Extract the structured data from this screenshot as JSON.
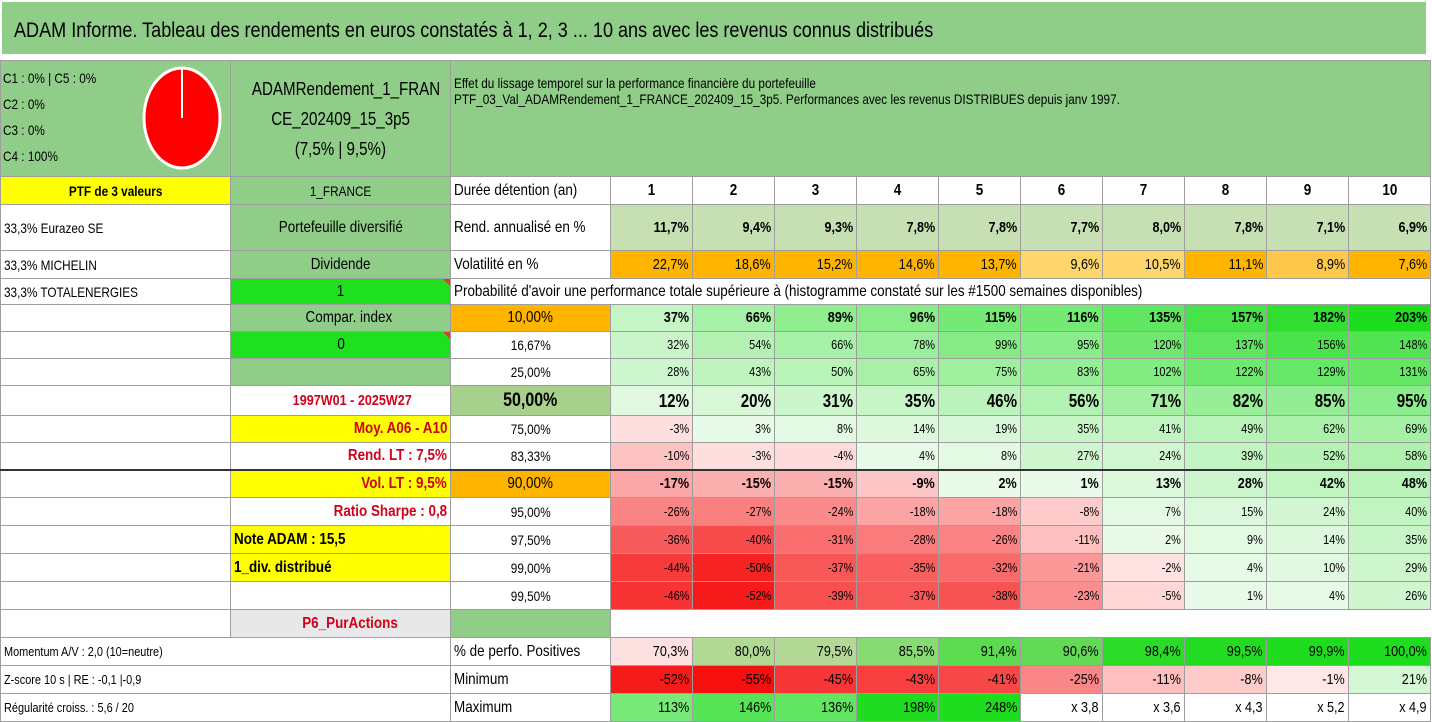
{
  "title": "ADAM Informe. Tableau des rendements en euros constatés à 1, 2, 3 ... 10 ans avec les revenus connus distribués",
  "pie": {
    "legend": [
      "C1 : 0% | C5 : 0%",
      "C2 : 0%",
      "C3 : 0%",
      "C4 : 100%"
    ],
    "values": [
      0,
      0,
      0,
      100,
      0
    ],
    "color": "#ff0000"
  },
  "portfolio_name": [
    "ADAMRendement_1_FRAN",
    "CE_202409_15_3p5",
    "(7,5% | 9,5%)"
  ],
  "description": [
    "Effet du lissage temporel sur la performance financière du portefeuille",
    "PTF_03_Val_ADAMRendement_1_FRANCE_202409_15_3p5. Performances avec les revenus DISTRIBUES depuis janv 1997."
  ],
  "left": {
    "ptf_label": "PTF de 3 valeurs",
    "holdings": [
      "33,3% Eurazeo SE",
      "33,3% MICHELIN",
      "33,3% TOTALENERGIES"
    ]
  },
  "middle": {
    "country": "1_FRANCE",
    "type": "Portefeuille diversifié",
    "dividende_label": "Dividende",
    "dividende_value": "1",
    "compar_index": "Compar. index",
    "compar_value": "0",
    "period": "1997W01 - 2025W27",
    "moy": "Moy. A06 - A10",
    "rend_lt": "Rend. LT : 7,5%",
    "vol_lt": "Vol. LT : 9,5%",
    "sharpe": "Ratio Sharpe : 0,8",
    "note": "Note ADAM : 15,5",
    "div": "1_div. distribué",
    "p6": "P6_PurActions",
    "momentum": "Momentum A/V : 2,0 (10=neutre)",
    "zscore": "Z-score 10 s | RE : -0,1 |-0,9",
    "regularite": "Régularité croiss. : 5,6 / 20"
  },
  "table": {
    "duree_label": "Durée détention (an)",
    "years": [
      "1",
      "2",
      "3",
      "4",
      "5",
      "6",
      "7",
      "8",
      "9",
      "10"
    ],
    "rend_label": "Rend. annualisé en %",
    "rend": [
      "11,7%",
      "9,4%",
      "9,3%",
      "7,8%",
      "7,8%",
      "7,7%",
      "8,0%",
      "7,8%",
      "7,1%",
      "6,9%"
    ],
    "vol_label": "Volatilité en %",
    "vol": [
      "22,7%",
      "18,6%",
      "15,2%",
      "14,6%",
      "13,7%",
      "9,6%",
      "10,5%",
      "11,1%",
      "8,9%",
      "7,6%"
    ],
    "prob_label": "Probabilité d'avoir une performance totale supérieure à (histogramme constaté sur les #1500 semaines disponibles)",
    "quantiles": [
      {
        "p": "10,00%",
        "v": [
          "37%",
          "66%",
          "89%",
          "96%",
          "115%",
          "116%",
          "135%",
          "157%",
          "182%",
          "203%"
        ]
      },
      {
        "p": "16,67%",
        "v": [
          "32%",
          "54%",
          "66%",
          "78%",
          "99%",
          "95%",
          "120%",
          "137%",
          "156%",
          "148%"
        ]
      },
      {
        "p": "25,00%",
        "v": [
          "28%",
          "43%",
          "50%",
          "65%",
          "75%",
          "83%",
          "102%",
          "122%",
          "129%",
          "131%"
        ]
      },
      {
        "p": "50,00%",
        "v": [
          "12%",
          "20%",
          "31%",
          "35%",
          "46%",
          "56%",
          "71%",
          "82%",
          "85%",
          "95%"
        ]
      },
      {
        "p": "75,00%",
        "v": [
          "-3%",
          "3%",
          "8%",
          "14%",
          "19%",
          "35%",
          "41%",
          "49%",
          "62%",
          "69%"
        ]
      },
      {
        "p": "83,33%",
        "v": [
          "-10%",
          "-3%",
          "-4%",
          "4%",
          "8%",
          "27%",
          "24%",
          "39%",
          "52%",
          "58%"
        ]
      },
      {
        "p": "90,00%",
        "v": [
          "-17%",
          "-15%",
          "-15%",
          "-9%",
          "2%",
          "1%",
          "13%",
          "28%",
          "42%",
          "48%"
        ]
      },
      {
        "p": "95,00%",
        "v": [
          "-26%",
          "-27%",
          "-24%",
          "-18%",
          "-18%",
          "-8%",
          "7%",
          "15%",
          "24%",
          "40%"
        ]
      },
      {
        "p": "97,50%",
        "v": [
          "-36%",
          "-40%",
          "-31%",
          "-28%",
          "-26%",
          "-11%",
          "2%",
          "9%",
          "14%",
          "35%"
        ]
      },
      {
        "p": "99,00%",
        "v": [
          "-44%",
          "-50%",
          "-37%",
          "-35%",
          "-32%",
          "-21%",
          "-2%",
          "4%",
          "10%",
          "29%"
        ]
      },
      {
        "p": "99,50%",
        "v": [
          "-46%",
          "-52%",
          "-39%",
          "-37%",
          "-38%",
          "-23%",
          "-5%",
          "1%",
          "4%",
          "26%"
        ]
      }
    ],
    "pos_label": "% de perfo. Positives",
    "pos": [
      "70,3%",
      "80,0%",
      "79,5%",
      "85,5%",
      "91,4%",
      "90,6%",
      "98,4%",
      "99,5%",
      "99,9%",
      "100,0%"
    ],
    "min_label": "Minimum",
    "min": [
      "-52%",
      "-55%",
      "-45%",
      "-43%",
      "-41%",
      "-25%",
      "-11%",
      "-8%",
      "-1%",
      "21%"
    ],
    "max_label": "Maximum",
    "max": [
      "113%",
      "146%",
      "136%",
      "198%",
      "248%",
      "x 3,8",
      "x 3,6",
      "x 4,3",
      "x 5,2",
      "x 4,9"
    ]
  }
}
